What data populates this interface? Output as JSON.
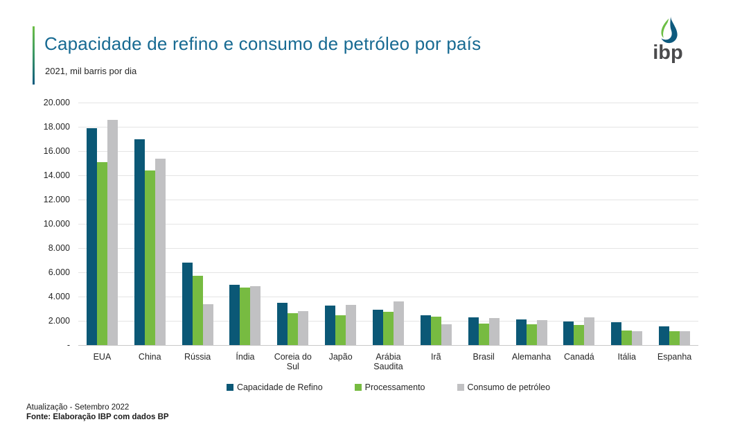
{
  "slide": {
    "title": "Capacidade de refino e consumo de petróleo por país",
    "subtitle": "2021, mil barris por dia",
    "logo_text": "ibp",
    "footer_line1": "Atualização - Setembro 2022",
    "footer_line2": "Fonte: Elaboração IBP com dados BP"
  },
  "colors": {
    "title_blue": "#176a92",
    "accent_gradient_top": "#6cbe45",
    "accent_gradient_bottom": "#0e5a7e",
    "gridline": "#e4e4e4",
    "logo_green": "#6cbe45",
    "logo_blue": "#0e5a7e",
    "logo_text_gray": "#4a4a4c"
  },
  "chart_data": {
    "type": "bar",
    "title": "Capacidade de refino e consumo de petróleo por país",
    "subtitle": "2021, mil barris por dia",
    "xlabel": "",
    "ylabel": "mil barris por dia",
    "ylim": [
      0,
      20000
    ],
    "grid": true,
    "legend_position": "bottom",
    "categories": [
      "EUA",
      "China",
      "Rússia",
      "Índia",
      "Coreia do Sul",
      "Japão",
      "Arábia Saudita",
      "Irã",
      "Brasil",
      "Alemanha",
      "Canadá",
      "Itália",
      "Espanha"
    ],
    "series": [
      {
        "name": "Capacidade de Refino",
        "color": "#0b5876",
        "values": [
          17900,
          16950,
          6800,
          5000,
          3500,
          3250,
          2900,
          2480,
          2270,
          2100,
          1940,
          1890,
          1560
        ]
      },
      {
        "name": "Processamento",
        "color": "#77bb41",
        "values": [
          15100,
          14400,
          5700,
          4720,
          2610,
          2450,
          2750,
          2320,
          1800,
          1700,
          1660,
          1190,
          1130
        ]
      },
      {
        "name": "Consumo de petróleo",
        "color": "#c1c1c3",
        "values": [
          18600,
          15400,
          3400,
          4870,
          2800,
          3320,
          3600,
          1700,
          2230,
          2060,
          2270,
          1170,
          1150
        ]
      }
    ],
    "y_ticks": [
      {
        "value": 0,
        "label": "-"
      },
      {
        "value": 2000,
        "label": "2.000"
      },
      {
        "value": 4000,
        "label": "4.000"
      },
      {
        "value": 6000,
        "label": "6.000"
      },
      {
        "value": 8000,
        "label": "8.000"
      },
      {
        "value": 10000,
        "label": "10.000"
      },
      {
        "value": 12000,
        "label": "12.000"
      },
      {
        "value": 14000,
        "label": "14.000"
      },
      {
        "value": 16000,
        "label": "16.000"
      },
      {
        "value": 18000,
        "label": "18.000"
      },
      {
        "value": 20000,
        "label": "20.000"
      }
    ]
  }
}
